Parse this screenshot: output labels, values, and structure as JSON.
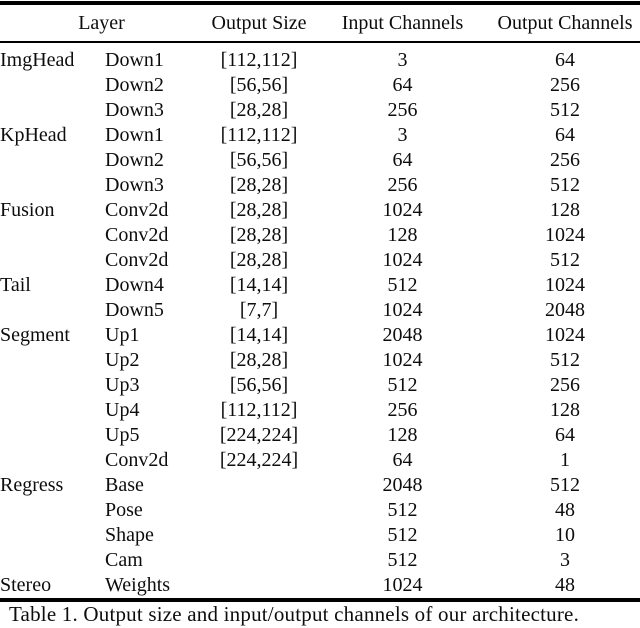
{
  "table": {
    "headers": {
      "layer": "Layer",
      "output_size": "Output Size",
      "input_channels": "Input Channels",
      "output_channels": "Output Channels"
    },
    "rows": [
      {
        "group": "ImgHead",
        "layer": "Down1",
        "output_size": "[112,112]",
        "input_channels": "3",
        "output_channels": "64"
      },
      {
        "group": "",
        "layer": "Down2",
        "output_size": "[56,56]",
        "input_channels": "64",
        "output_channels": "256"
      },
      {
        "group": "",
        "layer": "Down3",
        "output_size": "[28,28]",
        "input_channels": "256",
        "output_channels": "512"
      },
      {
        "group": "KpHead",
        "layer": "Down1",
        "output_size": "[112,112]",
        "input_channels": "3",
        "output_channels": "64"
      },
      {
        "group": "",
        "layer": "Down2",
        "output_size": "[56,56]",
        "input_channels": "64",
        "output_channels": "256"
      },
      {
        "group": "",
        "layer": "Down3",
        "output_size": "[28,28]",
        "input_channels": "256",
        "output_channels": "512"
      },
      {
        "group": "Fusion",
        "layer": "Conv2d",
        "output_size": "[28,28]",
        "input_channels": "1024",
        "output_channels": "128"
      },
      {
        "group": "",
        "layer": "Conv2d",
        "output_size": "[28,28]",
        "input_channels": "128",
        "output_channels": "1024"
      },
      {
        "group": "",
        "layer": "Conv2d",
        "output_size": "[28,28]",
        "input_channels": "1024",
        "output_channels": "512"
      },
      {
        "group": "Tail",
        "layer": "Down4",
        "output_size": "[14,14]",
        "input_channels": "512",
        "output_channels": "1024"
      },
      {
        "group": "",
        "layer": "Down5",
        "output_size": "[7,7]",
        "input_channels": "1024",
        "output_channels": "2048"
      },
      {
        "group": "Segment",
        "layer": "Up1",
        "output_size": "[14,14]",
        "input_channels": "2048",
        "output_channels": "1024"
      },
      {
        "group": "",
        "layer": "Up2",
        "output_size": "[28,28]",
        "input_channels": "1024",
        "output_channels": "512"
      },
      {
        "group": "",
        "layer": "Up3",
        "output_size": "[56,56]",
        "input_channels": "512",
        "output_channels": "256"
      },
      {
        "group": "",
        "layer": "Up4",
        "output_size": "[112,112]",
        "input_channels": "256",
        "output_channels": "128"
      },
      {
        "group": "",
        "layer": "Up5",
        "output_size": "[224,224]",
        "input_channels": "128",
        "output_channels": "64"
      },
      {
        "group": "",
        "layer": "Conv2d",
        "output_size": "[224,224]",
        "input_channels": "64",
        "output_channels": "1"
      },
      {
        "group": "Regress",
        "layer": "Base",
        "output_size": "",
        "input_channels": "2048",
        "output_channels": "512"
      },
      {
        "group": "",
        "layer": "Pose",
        "output_size": "",
        "input_channels": "512",
        "output_channels": "48"
      },
      {
        "group": "",
        "layer": "Shape",
        "output_size": "",
        "input_channels": "512",
        "output_channels": "10"
      },
      {
        "group": "",
        "layer": "Cam",
        "output_size": "",
        "input_channels": "512",
        "output_channels": "3"
      },
      {
        "group": "Stereo",
        "layer": "Weights",
        "output_size": "",
        "input_channels": "1024",
        "output_channels": "48"
      }
    ],
    "caption": "Table 1. Output size and input/output channels of our architecture."
  }
}
